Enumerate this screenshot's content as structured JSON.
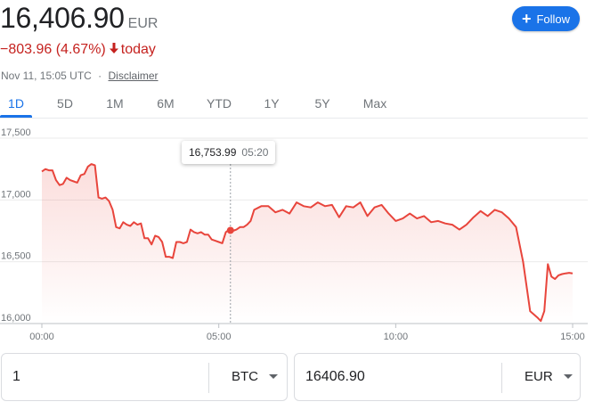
{
  "header": {
    "price": "16,406.90",
    "currency": "EUR",
    "change": "−803.96 (4.67%)",
    "change_period": "today",
    "timestamp": "Nov 11, 15:05 UTC",
    "separator": "·",
    "disclaimer": "Disclaimer",
    "follow_label": "Follow"
  },
  "tabs": [
    "1D",
    "5D",
    "1M",
    "6M",
    "YTD",
    "1Y",
    "5Y",
    "Max"
  ],
  "active_tab": "1D",
  "tooltip": {
    "value": "16,753.99",
    "time": "05:20"
  },
  "converter": {
    "from_value": "1",
    "from_currency": "BTC",
    "to_value": "16406.90",
    "to_currency": "EUR"
  },
  "colors": {
    "line": "#e8453c",
    "accent": "#1a73e8",
    "negative": "#c5221f"
  },
  "chart_data": {
    "type": "area",
    "y_tick_labels": [
      "17,500",
      "17,000",
      "16,500",
      "16,000"
    ],
    "x_tick_labels": [
      "00:00",
      "05:00",
      "10:00",
      "15:00"
    ],
    "ylim": [
      16000,
      17500
    ],
    "xlim_hours": [
      0,
      15.1
    ],
    "series": [
      {
        "x": [
          0.0,
          0.1,
          0.2,
          0.3,
          0.4,
          0.5,
          0.6,
          0.7,
          0.8,
          0.9,
          1.0,
          1.1,
          1.2,
          1.3,
          1.4,
          1.5,
          1.6,
          1.7,
          1.8,
          1.9,
          2.0,
          2.1,
          2.2,
          2.3,
          2.4,
          2.5,
          2.6,
          2.7,
          2.8,
          2.9,
          3.0,
          3.1,
          3.2,
          3.3,
          3.4,
          3.5,
          3.6,
          3.7,
          3.8,
          3.9,
          4.0,
          4.1,
          4.2,
          4.3,
          4.4,
          4.5,
          4.6,
          4.7,
          4.8,
          4.9,
          5.0,
          5.1,
          5.2,
          5.3,
          5.4,
          5.5,
          5.6,
          5.7,
          5.8,
          5.9,
          6.0,
          6.2,
          6.4,
          6.6,
          6.8,
          7.0,
          7.2,
          7.4,
          7.6,
          7.8,
          8.0,
          8.2,
          8.4,
          8.6,
          8.8,
          9.0,
          9.2,
          9.4,
          9.6,
          9.8,
          10.0,
          10.2,
          10.4,
          10.6,
          10.8,
          11.0,
          11.2,
          11.4,
          11.6,
          11.8,
          12.0,
          12.2,
          12.4,
          12.6,
          12.8,
          13.0,
          13.2,
          13.4,
          13.6,
          13.8,
          14.0,
          14.1,
          14.2,
          14.3,
          14.4,
          14.5,
          14.6,
          14.7,
          14.8,
          14.9,
          15.0
        ],
        "values": [
          17230,
          17250,
          17240,
          17240,
          17160,
          17120,
          17130,
          17180,
          17160,
          17150,
          17140,
          17200,
          17210,
          17270,
          17290,
          17280,
          17020,
          17010,
          17020,
          16990,
          16920,
          16780,
          16770,
          16820,
          16800,
          16790,
          16820,
          16800,
          16810,
          16690,
          16690,
          16640,
          16710,
          16700,
          16660,
          16540,
          16540,
          16530,
          16660,
          16660,
          16650,
          16660,
          16760,
          16740,
          16730,
          16740,
          16720,
          16720,
          16680,
          16670,
          16660,
          16650,
          16740,
          16760,
          16750,
          16760,
          16780,
          16780,
          16800,
          16830,
          16920,
          16950,
          16950,
          16900,
          16920,
          16890,
          16980,
          16950,
          16940,
          16980,
          16950,
          16960,
          16860,
          16950,
          16940,
          16980,
          16870,
          16940,
          16960,
          16890,
          16830,
          16850,
          16890,
          16850,
          16870,
          16820,
          16830,
          16810,
          16800,
          16760,
          16800,
          16860,
          16910,
          16870,
          16920,
          16900,
          16850,
          16780,
          16500,
          16100,
          16050,
          16020,
          16100,
          16480,
          16380,
          16360,
          16390,
          16400,
          16406,
          16410,
          16406
        ]
      }
    ],
    "hover_point": {
      "x": 5.33,
      "y": 16753.99
    }
  }
}
